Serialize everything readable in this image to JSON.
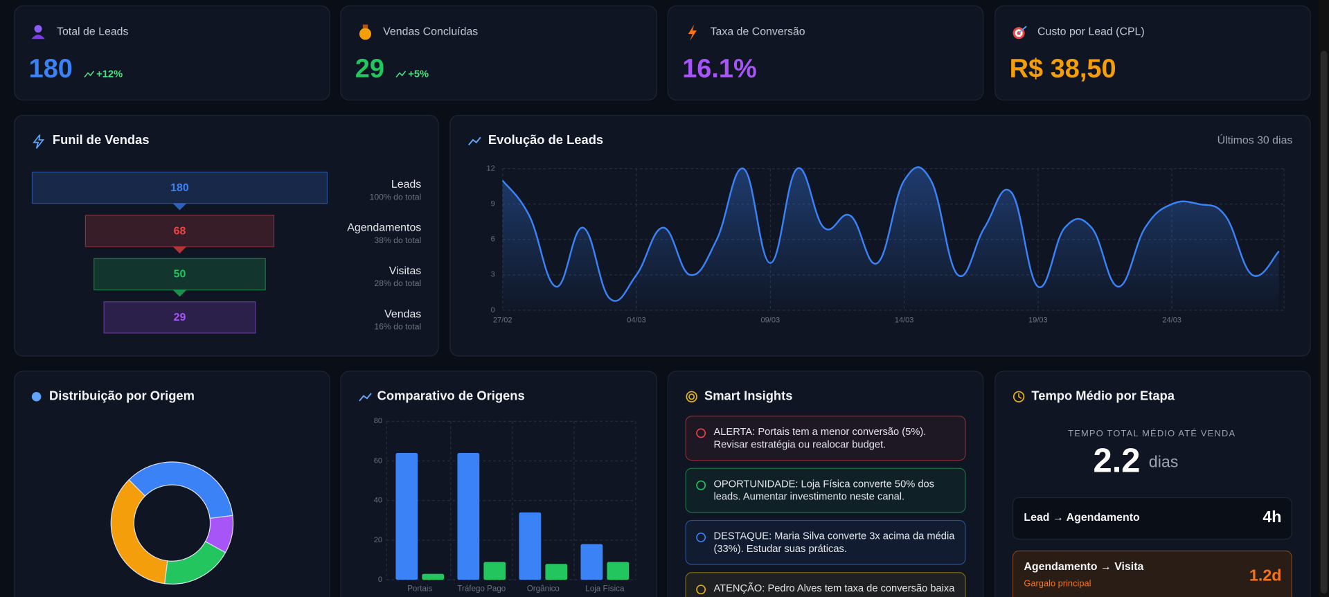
{
  "kpis": [
    {
      "label": "Total de Leads",
      "value": "180",
      "change": "+12%",
      "color": "#3b82f6"
    },
    {
      "label": "Vendas Concluídas",
      "value": "29",
      "change": "+5%",
      "color": "#22c55e"
    },
    {
      "label": "Taxa de Conversão",
      "value": "16.1%",
      "color": "#a855f7"
    },
    {
      "label": "Custo por Lead (CPL)",
      "value": "R$ 38,50",
      "color": "#f59e0b"
    }
  ],
  "chart_data": [
    {
      "type": "funnel",
      "title": "Funil de Vendas",
      "categories": [
        "Leads",
        "Agendamentos",
        "Visitas",
        "Vendas"
      ],
      "values": [
        180,
        68,
        50,
        29
      ],
      "share_labels": [
        "100% do total",
        "38% do total",
        "28% do total",
        "16% do total"
      ],
      "colors": [
        "#3b82f6",
        "#ef4444",
        "#22c55e",
        "#a855f7"
      ]
    },
    {
      "type": "line",
      "title": "Evolução de Leads",
      "subtitle": "Últimos 30 dias",
      "categories": [
        "27/02",
        null,
        null,
        null,
        null,
        "04/03",
        null,
        null,
        null,
        null,
        "09/03",
        null,
        null,
        null,
        null,
        "14/03",
        null,
        null,
        null,
        null,
        "19/03",
        null,
        null,
        null,
        null,
        "24/03",
        null,
        null,
        null,
        null
      ],
      "series": [
        {
          "color": "#3b82f6",
          "values": [
            11,
            8,
            2,
            7,
            1,
            3,
            7,
            3,
            6,
            12,
            4,
            12,
            7,
            8,
            4,
            11,
            11,
            3,
            7,
            10,
            2,
            7,
            7,
            2,
            7,
            9,
            9,
            8,
            3,
            5
          ]
        }
      ],
      "ylim": [
        0,
        12
      ],
      "yticks": [
        0,
        3,
        6,
        9,
        12
      ],
      "grid": true
    },
    {
      "type": "pie",
      "title": "Distribuição por Origem",
      "values": [
        64,
        18,
        34,
        64
      ],
      "colors": [
        "#3b82f6",
        "#a855f7",
        "#22c55e",
        "#f59e0b"
      ],
      "donut": true
    },
    {
      "type": "bar",
      "title": "Comparativo de Origens",
      "categories": [
        "Portais",
        "Tráfego Pago",
        "Orgânico",
        "Loja Física"
      ],
      "series": [
        {
          "color": "#3b82f6",
          "values": [
            64,
            64,
            34,
            18
          ]
        },
        {
          "color": "#22c55e",
          "values": [
            3,
            9,
            8,
            9
          ]
        }
      ],
      "ylim": [
        0,
        80
      ],
      "yticks": [
        0,
        20,
        40,
        60,
        80
      ],
      "grid": true
    }
  ],
  "insights": {
    "title": "Smart Insights",
    "items": [
      {
        "color": "#ef4444",
        "lines": [
          "ALERTA: Portais tem a menor conversão (5%).",
          "Revisar estratégia ou realocar budget."
        ]
      },
      {
        "color": "#22c55e",
        "lines": [
          "OPORTUNIDADE: Loja Física converte 50% dos",
          "leads. Aumentar investimento neste canal."
        ]
      },
      {
        "color": "#3b82f6",
        "lines": [
          "DESTAQUE: Maria Silva converte 3x acima da média",
          "(33%). Estudar suas práticas."
        ]
      },
      {
        "color": "#eab308",
        "lines": [
          "ATENÇÃO: Pedro Alves tem taxa de conversão baixa"
        ]
      }
    ]
  },
  "stage_times": {
    "title": "Tempo Médio por Etapa",
    "total_label": "TEMPO TOTAL MÉDIO ATÉ VENDA",
    "total_value": "2.2",
    "total_unit": "dias",
    "stages": [
      {
        "name": "Lead → Agendamento",
        "value": "4h"
      },
      {
        "name": "Agendamento → Visita",
        "value": "1.2d",
        "note": "Gargalo principal",
        "color": "#f97316"
      }
    ]
  }
}
